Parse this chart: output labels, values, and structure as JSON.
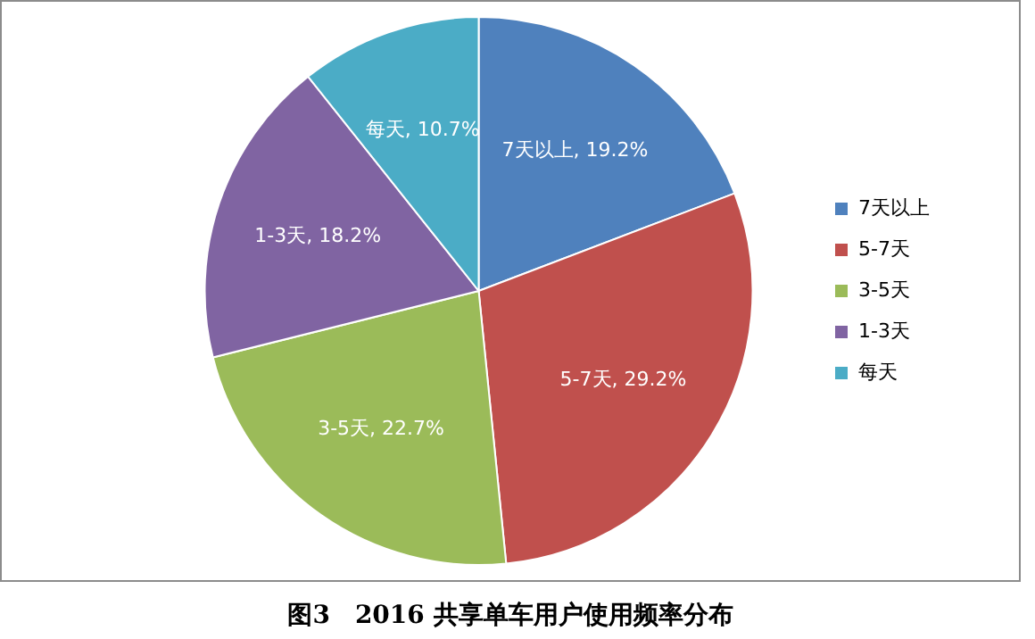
{
  "chart_data": {
    "type": "pie",
    "title": "图3　2016 共享单车用户使用频率分布",
    "categories": [
      "7天以上",
      "5-7天",
      "3-5天",
      "1-3天",
      "每天"
    ],
    "values": [
      19.2,
      29.2,
      22.7,
      18.2,
      10.7
    ],
    "colors": [
      "#4f81bd",
      "#c0504d",
      "#9bbb59",
      "#8064a2",
      "#4bacc6"
    ],
    "value_labels": [
      "7天以上, 19.2%",
      "5-7天, 29.2%",
      "3-5天, 22.7%",
      "1-3天, 18.2%",
      "每天, 10.7%"
    ],
    "legend": "right"
  }
}
